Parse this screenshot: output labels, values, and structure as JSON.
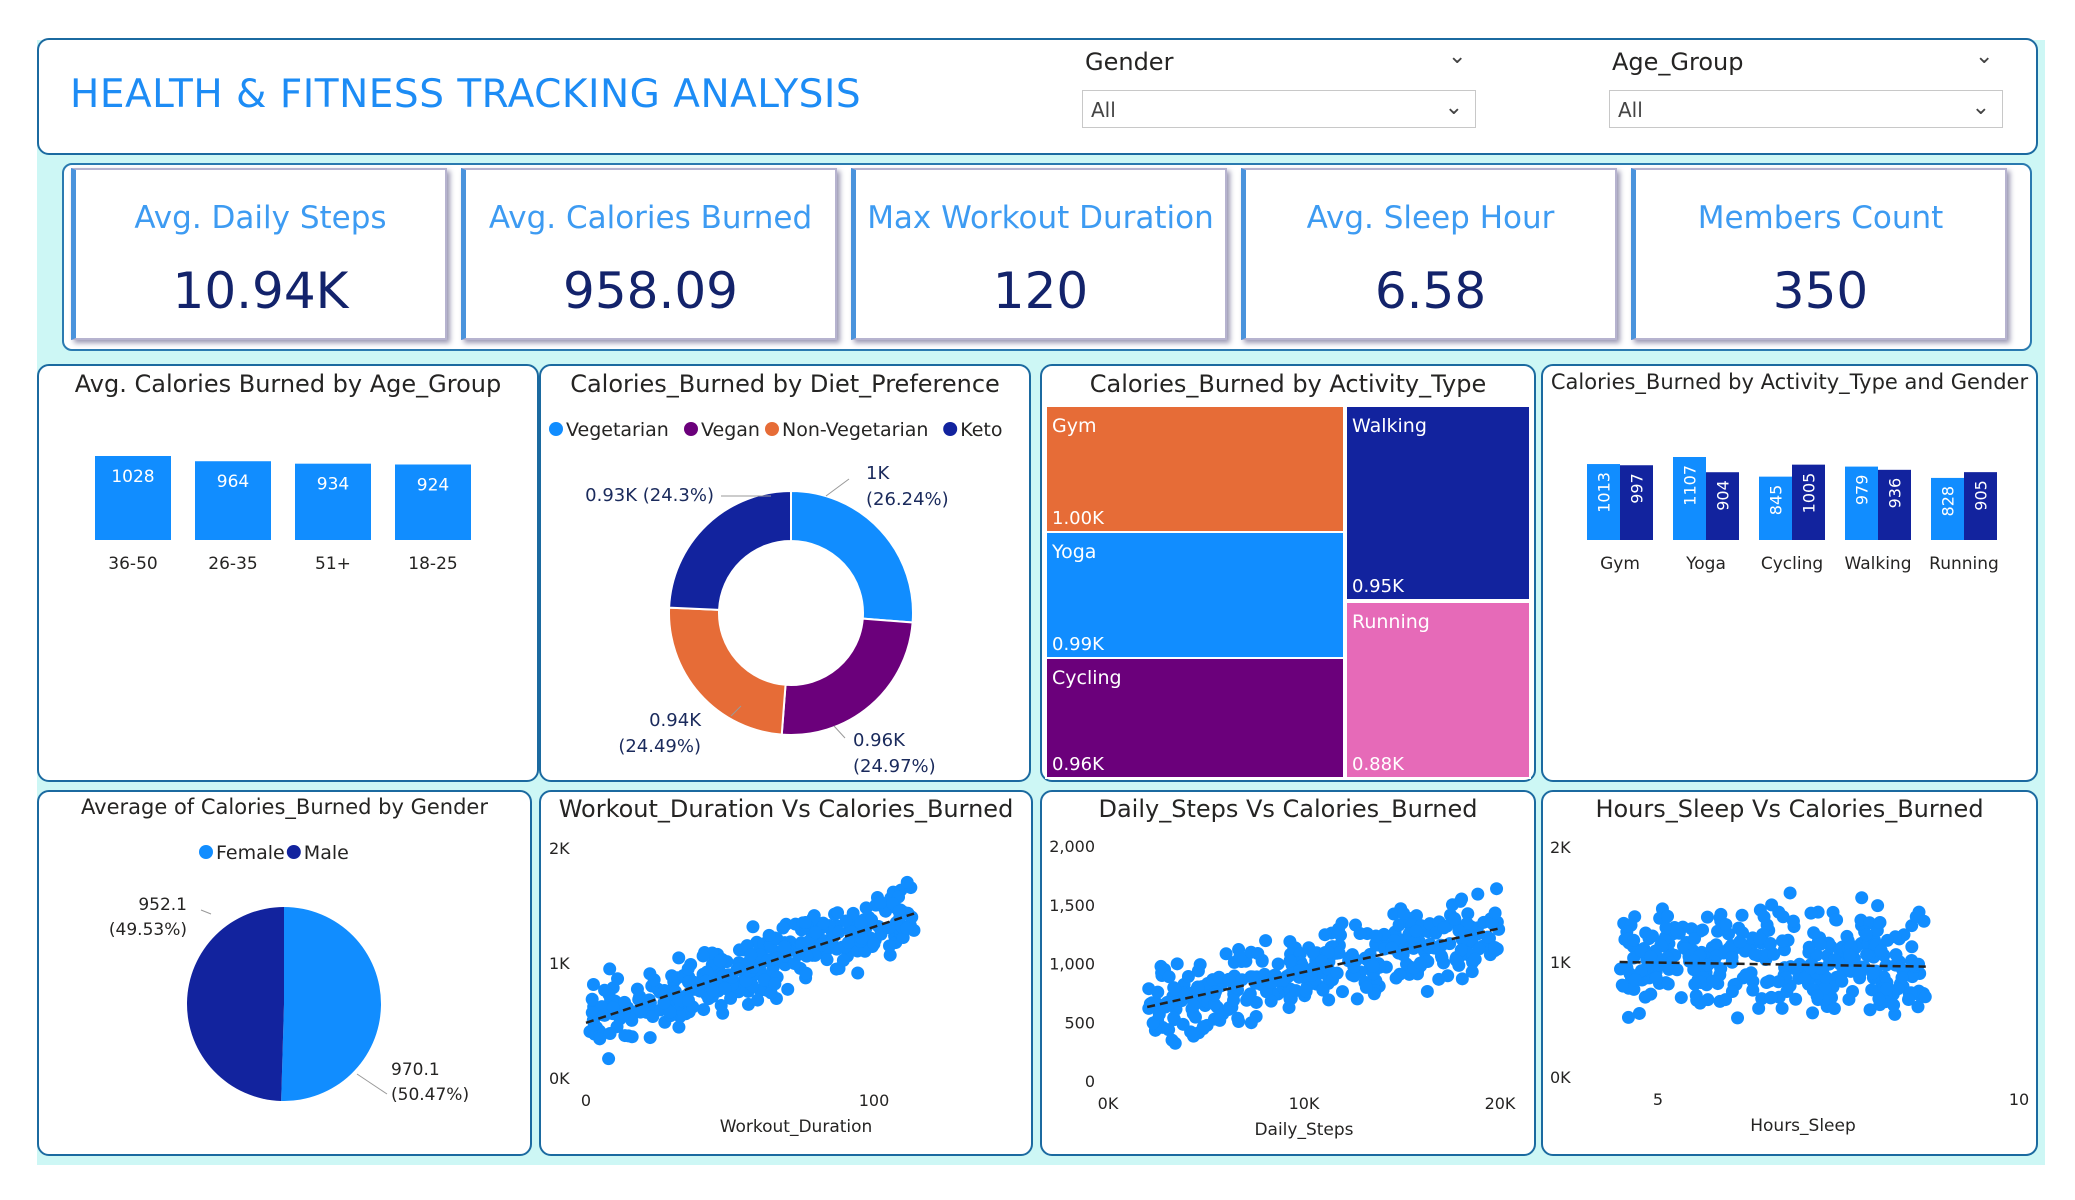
{
  "header": {
    "title": "HEALTH & FITNESS TRACKING ANALYSIS",
    "slicers": [
      {
        "label": "Gender",
        "value": "All"
      },
      {
        "label": "Age_Group",
        "value": "All"
      }
    ]
  },
  "kpis": [
    {
      "label": "Avg. Daily Steps",
      "value": "10.94K"
    },
    {
      "label": "Avg. Calories Burned",
      "value": "958.09"
    },
    {
      "label": "Max Workout Duration",
      "value": "120"
    },
    {
      "label": "Avg. Sleep Hour",
      "value": "6.58"
    },
    {
      "label": "Members Count",
      "value": "350"
    }
  ],
  "colors": {
    "accent": "#118dff",
    "navy": "#12239e",
    "orange": "#e66c37",
    "purple": "#6b007b",
    "pink": "#e044a7",
    "kpi_value": "#13236b",
    "kpi_label": "#3d9bf2",
    "border": "#1b6aa0",
    "background": "#cdf7f5"
  },
  "chart_data": [
    {
      "id": "age_group",
      "type": "bar",
      "title": "Avg. Calories Burned by Age_Group",
      "categories": [
        "36-50",
        "26-35",
        "51+",
        "18-25"
      ],
      "values": [
        1028,
        964,
        934,
        924
      ],
      "labels": [
        "1028",
        "964",
        "934",
        "924"
      ],
      "ylim": [
        0,
        1028
      ]
    },
    {
      "id": "diet",
      "type": "pie",
      "title": "Calories_Burned by Diet_Preference",
      "legend": [
        "Vegetarian",
        "Vegan",
        "Non-Vegetarian",
        "Keto"
      ],
      "values": [
        26.24,
        24.97,
        24.49,
        24.3
      ],
      "labels": [
        [
          "1K",
          "(26.24%)"
        ],
        [
          "0.96K",
          "(24.97%)"
        ],
        [
          "0.94K",
          "(24.49%)"
        ],
        [
          "0.93K (24.3%)"
        ]
      ]
    },
    {
      "id": "activity_treemap",
      "type": "treemap",
      "title": "Calories_Burned by Activity_Type",
      "categories": [
        "Gym",
        "Yoga",
        "Cycling",
        "Walking",
        "Running"
      ],
      "values": [
        1.0,
        0.99,
        0.96,
        0.95,
        0.88
      ],
      "labels": [
        "1.00K",
        "0.99K",
        "0.96K",
        "0.95K",
        "0.88K"
      ]
    },
    {
      "id": "activity_gender",
      "type": "bar",
      "title": "Calories_Burned by Activity_Type and Gender",
      "categories": [
        "Gym",
        "Yoga",
        "Cycling",
        "Walking",
        "Running"
      ],
      "series": [
        {
          "values": [
            1013,
            1107,
            845,
            979,
            828
          ]
        },
        {
          "values": [
            997,
            904,
            1005,
            936,
            905
          ]
        }
      ],
      "ylim": [
        0,
        1107
      ]
    },
    {
      "id": "gender_pie",
      "type": "pie",
      "title": "Average of Calories_Burned by Gender",
      "legend": [
        "Female",
        "Male"
      ],
      "values": [
        50.47,
        49.53
      ],
      "labels": [
        [
          "970.1",
          "(50.47%)"
        ],
        [
          "952.1",
          "(49.53%)"
        ]
      ]
    },
    {
      "id": "workout_scatter",
      "type": "scatter",
      "title": "Workout_Duration Vs Calories_Burned",
      "xlabel": "Workout_Duration",
      "xticks": [
        "0",
        "100"
      ],
      "yticks": [
        "0K",
        "1K",
        "2K"
      ],
      "xlim": [
        0,
        120
      ],
      "ylim": [
        0,
        2000
      ],
      "trend": [
        [
          0,
          480
        ],
        [
          120,
          1430
        ]
      ],
      "points": 350
    },
    {
      "id": "steps_scatter",
      "type": "scatter",
      "title": "Daily_Steps Vs Calories_Burned",
      "xlabel": "Daily_Steps",
      "xticks": [
        "0K",
        "10K",
        "20K"
      ],
      "yticks": [
        "0",
        "500",
        "1,000",
        "1,500",
        "2,000"
      ],
      "xlim": [
        0,
        20000
      ],
      "ylim": [
        0,
        2000
      ],
      "trend": [
        [
          2000,
          630
        ],
        [
          20000,
          1300
        ]
      ],
      "points": 350
    },
    {
      "id": "sleep_scatter",
      "type": "scatter",
      "title": "Hours_Sleep Vs Calories_Burned",
      "xlabel": "Hours_Sleep",
      "xticks": [
        "5",
        "10"
      ],
      "yticks": [
        "0K",
        "1K",
        "2K"
      ],
      "xlim": [
        3.5,
        10
      ],
      "ylim": [
        0,
        2000
      ],
      "trend": [
        [
          4,
          1000
        ],
        [
          9,
          960
        ]
      ],
      "points": 350
    }
  ]
}
